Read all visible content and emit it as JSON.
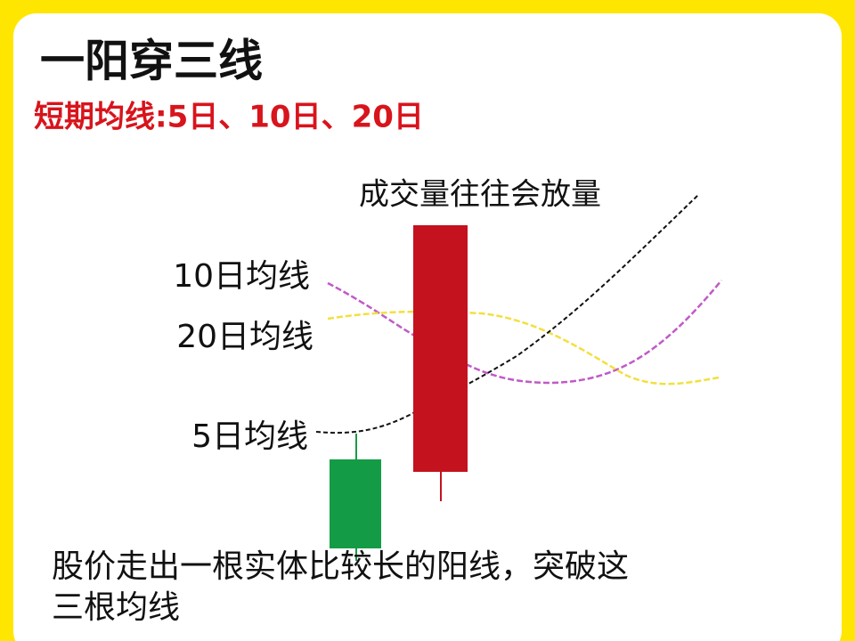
{
  "header": {
    "title": "一阳穿三线",
    "subtitle": "短期均线:5日、10日、20日"
  },
  "annotation": "成交量往往会放量",
  "labels": {
    "ma10": "10日均线",
    "ma20": "20日均线",
    "ma5": "5日均线"
  },
  "caption": [
    "股价走出一根实体比较长的阳线，突破这",
    "三根均线"
  ]
}
